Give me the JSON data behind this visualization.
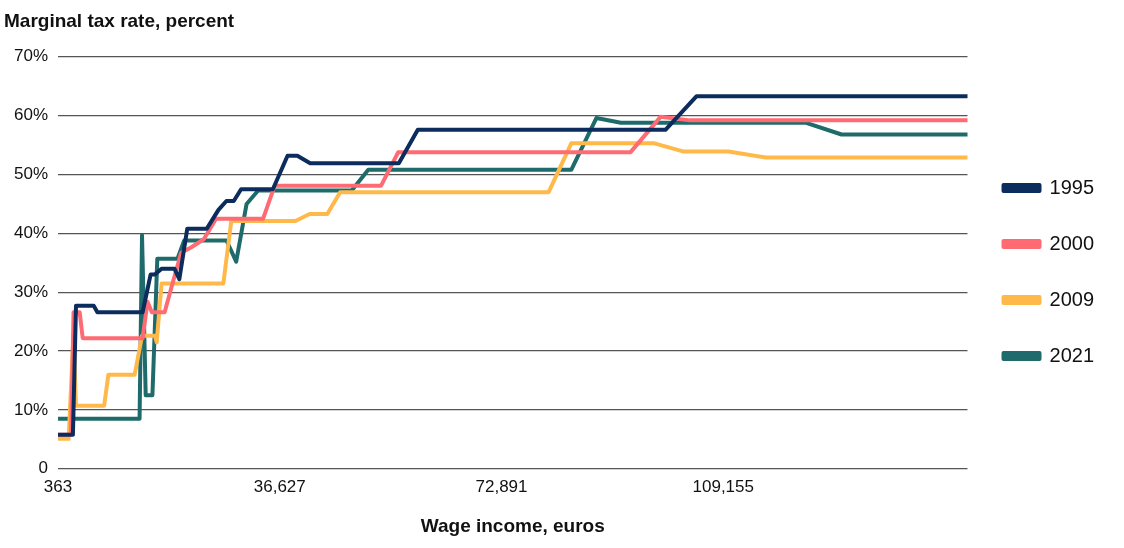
{
  "chart_data": {
    "type": "line",
    "title": "Marginal tax rate, percent",
    "xlabel": "Wage income, euros",
    "xlim": [
      363,
      149100
    ],
    "xticks": [
      363,
      {
        "value": 36627,
        "label": "36,627"
      },
      {
        "value": 72891,
        "label": "72,891"
      },
      {
        "value": 109155,
        "label": "109,155"
      }
    ],
    "ylim": [
      0,
      70
    ],
    "yticks": [
      {
        "value": 0,
        "label": "0"
      },
      {
        "value": 10,
        "label": "10%"
      },
      {
        "value": 20,
        "label": "20%"
      },
      {
        "value": 30,
        "label": "30%"
      },
      {
        "value": 40,
        "label": "40%"
      },
      {
        "value": 50,
        "label": "50%"
      },
      {
        "value": 60,
        "label": "60%"
      },
      {
        "value": 70,
        "label": "70%"
      }
    ],
    "grid": "y",
    "legend": "right",
    "marker": "none",
    "line_style": "solid",
    "series": [
      {
        "name": "1995",
        "color": "#0b2c5c",
        "x": [
          363,
          2800,
          3300,
          6200,
          6800,
          14200,
          15500,
          16200,
          17300,
          19400,
          20200,
          21500,
          24700,
          26600,
          27900,
          29100,
          30300,
          35500,
          37900,
          39500,
          41600,
          56100,
          59200,
          99700,
          104800,
          149100
        ],
        "values": [
          5.8,
          5.8,
          27.7,
          27.7,
          26.6,
          26.6,
          33,
          33,
          34,
          34,
          32.2,
          40.8,
          40.8,
          44,
          45.5,
          45.5,
          47.5,
          47.5,
          53.2,
          53.2,
          51.9,
          51.9,
          57.6,
          57.6,
          63.3,
          63.3
        ]
      },
      {
        "name": "2000",
        "color": "#ff6b73",
        "x": [
          363,
          2500,
          2900,
          3900,
          4400,
          14200,
          15000,
          15700,
          17800,
          18900,
          20500,
          22100,
          24200,
          26200,
          33900,
          35800,
          53200,
          56000,
          94000,
          98900,
          103700,
          149100
        ],
        "values": [
          5.8,
          5.8,
          26.6,
          26.6,
          22.2,
          22.2,
          28.4,
          26.6,
          26.6,
          30.8,
          36.7,
          37.6,
          39,
          42.5,
          42.5,
          48.1,
          48.1,
          53.8,
          53.8,
          59.8,
          59.2,
          59.2
        ]
      },
      {
        "name": "2009",
        "color": "#ffb94a",
        "x": [
          363,
          2100,
          2900,
          3300,
          7900,
          8600,
          12900,
          14100,
          16200,
          16500,
          17300,
          27400,
          28700,
          39200,
          41500,
          44400,
          46500,
          80600,
          84300,
          97900,
          102700,
          110000,
          116100,
          149100
        ],
        "values": [
          5.1,
          5.1,
          22.9,
          10.7,
          10.7,
          16,
          16,
          22.6,
          22.6,
          21.5,
          31.5,
          31.5,
          42.1,
          42.1,
          43.3,
          43.3,
          47,
          47,
          55.3,
          55.3,
          53.9,
          53.9,
          52.9,
          52.9
        ]
      },
      {
        "name": "2021",
        "color": "#1f6b6b",
        "x": [
          363,
          13700,
          14100,
          14700,
          15800,
          16600,
          19900,
          21000,
          27900,
          29500,
          31200,
          33100,
          48400,
          51100,
          84300,
          88400,
          92400,
          122600,
          128500,
          149100
        ],
        "values": [
          8.5,
          8.5,
          39.7,
          12.5,
          12.5,
          35.7,
          35.7,
          38.8,
          38.8,
          35.2,
          45,
          47.3,
          47.3,
          50.8,
          50.8,
          59.6,
          58.8,
          58.8,
          56.8,
          56.8
        ]
      }
    ]
  }
}
